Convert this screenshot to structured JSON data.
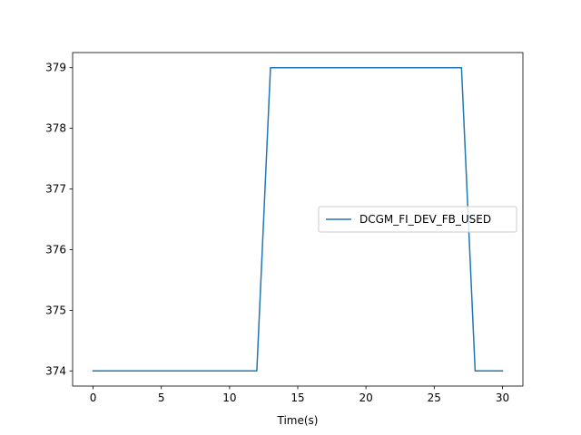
{
  "chart_data": {
    "type": "line",
    "title": "",
    "xlabel": "Time(s)",
    "ylabel": "",
    "xlim": [
      -1.5,
      31.5
    ],
    "ylim": [
      373.75,
      379.25
    ],
    "xticks": [
      0,
      5,
      10,
      15,
      20,
      25,
      30
    ],
    "yticks": [
      374,
      375,
      376,
      377,
      378,
      379
    ],
    "grid": false,
    "legend_position": "center-right",
    "series": [
      {
        "name": "DCGM_FI_DEV_FB_USED",
        "color": "#1f77b4",
        "x": [
          0,
          1,
          2,
          3,
          4,
          5,
          6,
          7,
          8,
          9,
          10,
          11,
          12,
          13,
          14,
          15,
          16,
          17,
          18,
          19,
          20,
          21,
          22,
          23,
          24,
          25,
          26,
          27,
          28,
          29,
          30
        ],
        "y": [
          374,
          374,
          374,
          374,
          374,
          374,
          374,
          374,
          374,
          374,
          374,
          374,
          374,
          379,
          379,
          379,
          379,
          379,
          379,
          379,
          379,
          379,
          379,
          379,
          379,
          379,
          379,
          379,
          374,
          374,
          374
        ]
      }
    ]
  }
}
